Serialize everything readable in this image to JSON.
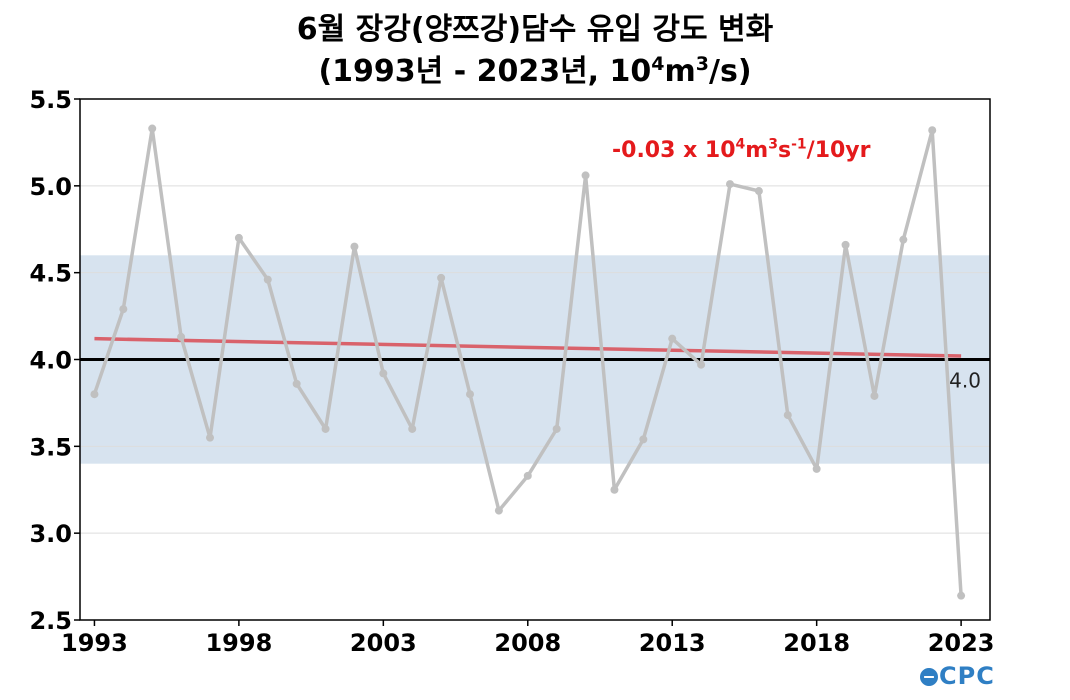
{
  "title": {
    "line1": "6월 장강(양쯔강)담수 유입 강도 변화",
    "line2_pre": "(1993년 - 2023년, 10",
    "line2_sup1": "4",
    "line2_mid": "m",
    "line2_sup2": "3",
    "line2_post": "/s)"
  },
  "trend_label": {
    "pre": "-0.03 x 10",
    "sup1": "4",
    "mid1": "m",
    "sup2": "3",
    "mid2": "s",
    "sup3": "-1",
    "post": "/10yr"
  },
  "logo": {
    "text": "CPC"
  },
  "colors": {
    "series": "#c0c0c0",
    "trend": "#d9626b",
    "band": "#d7e3ef",
    "reference": "#000000",
    "trend_text": "#e41a1c"
  },
  "chart_data": {
    "type": "line",
    "x": [
      1993,
      1994,
      1995,
      1996,
      1997,
      1998,
      1999,
      2000,
      2001,
      2002,
      2003,
      2004,
      2005,
      2006,
      2007,
      2008,
      2009,
      2010,
      2011,
      2012,
      2013,
      2014,
      2015,
      2016,
      2017,
      2018,
      2019,
      2020,
      2021,
      2022,
      2023
    ],
    "series": [
      {
        "values": [
          3.8,
          4.29,
          5.33,
          4.13,
          3.55,
          4.7,
          4.46,
          3.86,
          3.6,
          4.65,
          3.92,
          3.6,
          4.47,
          3.8,
          3.13,
          3.33,
          3.6,
          5.06,
          3.25,
          3.54,
          4.12,
          3.97,
          5.01,
          4.97,
          3.68,
          3.37,
          4.66,
          3.79,
          4.69,
          5.32,
          2.64
        ]
      }
    ],
    "trend": {
      "start": [
        1993,
        4.12
      ],
      "end": [
        2023,
        4.02
      ]
    },
    "reference_line": {
      "value": 4.0,
      "label": "4.0"
    },
    "normal_band": [
      3.4,
      4.6
    ],
    "ylim": [
      2.5,
      5.5
    ],
    "xlim": [
      1992.5,
      2024.0
    ],
    "yticks": [
      "2.5",
      "3.0",
      "3.5",
      "4.0",
      "4.5",
      "5.0",
      "5.5"
    ],
    "xticks": [
      "1993",
      "1998",
      "2003",
      "2008",
      "2013",
      "2018",
      "2023"
    ],
    "grid": true
  }
}
